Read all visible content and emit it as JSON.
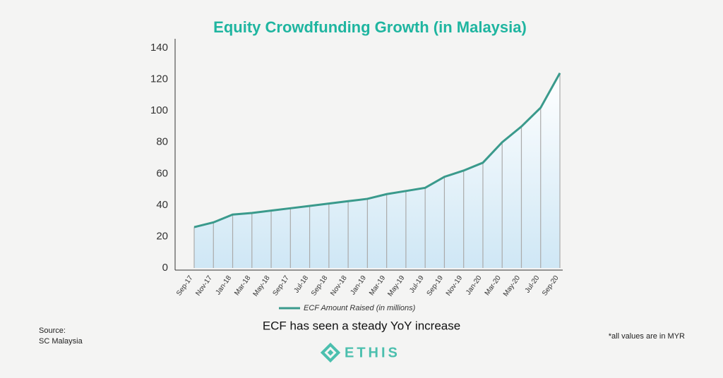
{
  "chart_data": {
    "type": "line",
    "title": "Equity Crowdfunding Growth (in Malaysia)",
    "categories": [
      "Sep-17",
      "Nov-17",
      "Jan-18",
      "Mar-18",
      "May-18",
      "Sep-17",
      "Jul-18",
      "Sep-18",
      "Nov-18",
      "Jan-19",
      "Mar-19",
      "May-19",
      "Jul-19",
      "Sep-19",
      "Nov-19",
      "Jan-20",
      "Mar-20",
      "May-20",
      "Jul-20",
      "Sep-20"
    ],
    "series": [
      {
        "name": "ECF Amount Raised (in millions)",
        "color": "#3a9a8c",
        "values": [
          26,
          29,
          34,
          35,
          36.5,
          38,
          39.5,
          41,
          42.5,
          44,
          47,
          49,
          51,
          58,
          62,
          67,
          80,
          90,
          102,
          124
        ]
      }
    ],
    "ylim": [
      0,
      140
    ],
    "yticks": [
      0,
      20,
      40,
      60,
      80,
      100,
      120,
      140
    ],
    "grid": false,
    "caption": "ECF has seen a steady YoY increase",
    "source": [
      "Source:",
      "SC Malaysia"
    ],
    "note": "*all values are in MYR"
  },
  "logo": "ETHIS"
}
